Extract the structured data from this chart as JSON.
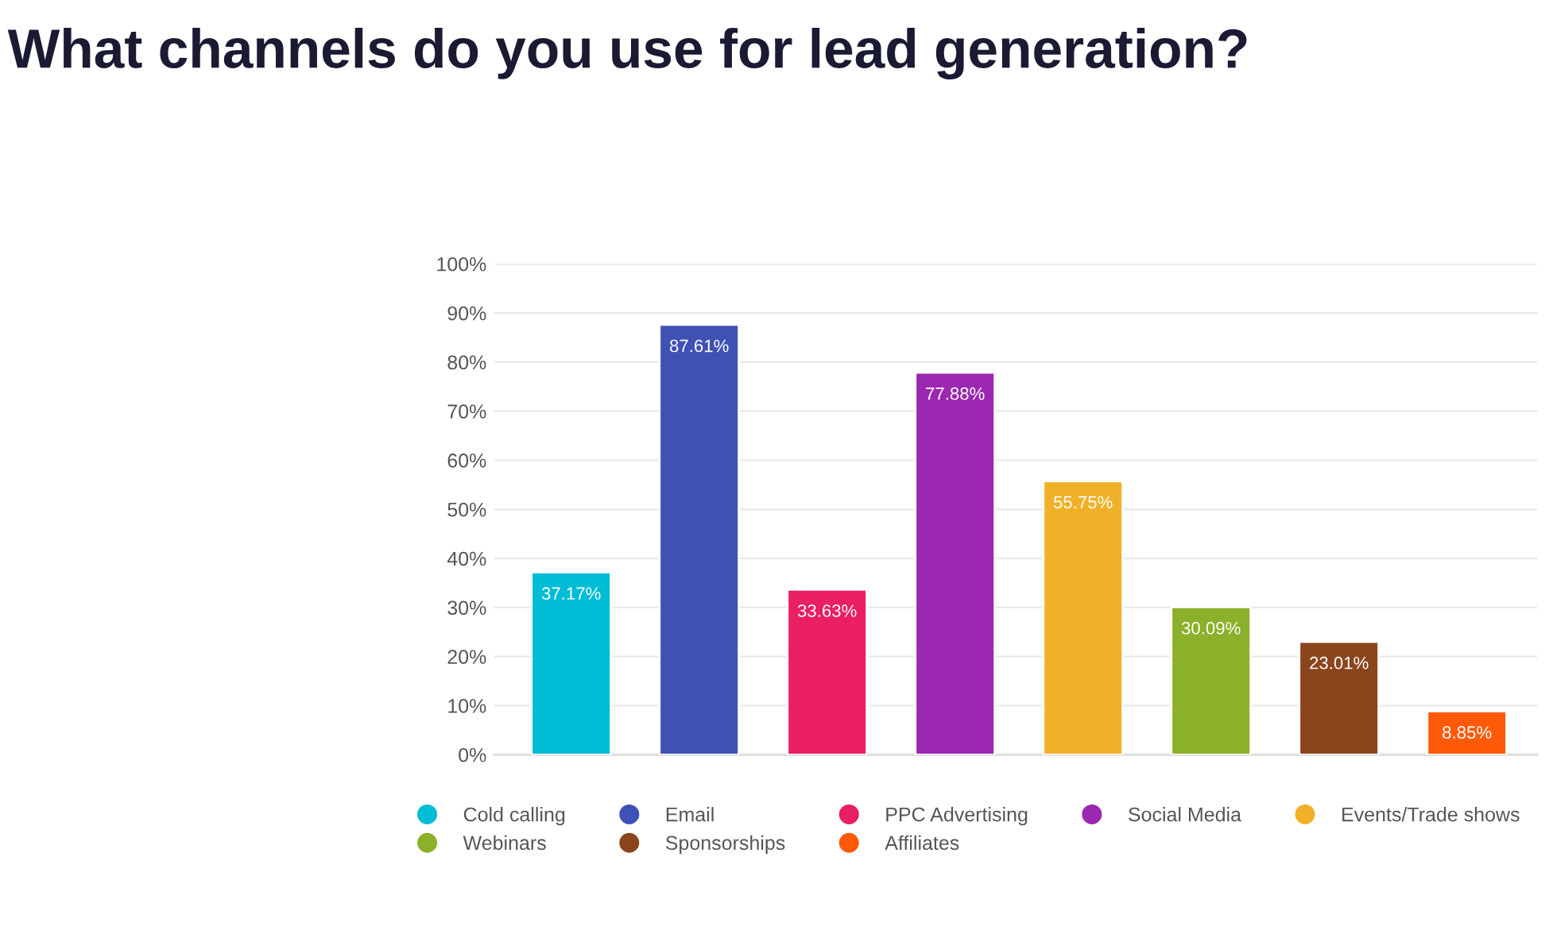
{
  "chart_data": {
    "type": "bar",
    "title": "What channels do you use for lead generation?",
    "categories": [
      null,
      null,
      null,
      null,
      null,
      null,
      null,
      null
    ],
    "series": [
      {
        "name": "Cold calling",
        "color": "#00bcd4",
        "values": [
          37.17,
          null,
          null,
          null,
          null,
          null,
          null,
          null
        ],
        "value_labels": [
          "37.17%",
          null,
          null,
          null,
          null,
          null,
          null,
          null
        ]
      },
      {
        "name": "Email",
        "color": "#3f51b5",
        "values": [
          null,
          87.61,
          null,
          null,
          null,
          null,
          null,
          null
        ],
        "value_labels": [
          null,
          "87.61%",
          null,
          null,
          null,
          null,
          null,
          null
        ]
      },
      {
        "name": "PPC Advertising",
        "color": "#e91e63",
        "values": [
          null,
          null,
          33.63,
          null,
          null,
          null,
          null,
          null
        ],
        "value_labels": [
          null,
          null,
          "33.63%",
          null,
          null,
          null,
          null,
          null
        ]
      },
      {
        "name": "Social Media",
        "color": "#9c27b0",
        "values": [
          null,
          null,
          null,
          77.88,
          null,
          null,
          null,
          null
        ],
        "value_labels": [
          null,
          null,
          null,
          "77.88%",
          null,
          null,
          null,
          null
        ]
      },
      {
        "name": "Events/Trade shows",
        "color": "#f0b128",
        "values": [
          null,
          null,
          null,
          null,
          55.75,
          null,
          null,
          null
        ],
        "value_labels": [
          null,
          null,
          null,
          null,
          "55.75%",
          null,
          null,
          null
        ]
      },
      {
        "name": "Webinars",
        "color": "#8bb02a",
        "values": [
          null,
          null,
          null,
          null,
          null,
          30.09,
          null,
          null
        ],
        "value_labels": [
          null,
          null,
          null,
          null,
          null,
          "30.09%",
          null,
          null
        ]
      },
      {
        "name": "Sponsorships",
        "color": "#8b451c",
        "values": [
          null,
          null,
          null,
          null,
          null,
          null,
          23.01,
          null
        ],
        "value_labels": [
          null,
          null,
          null,
          null,
          null,
          null,
          "23.01%",
          null
        ]
      },
      {
        "name": "Affiliates",
        "color": "#ff5a0a",
        "values": [
          null,
          null,
          null,
          null,
          null,
          null,
          null,
          8.85
        ],
        "value_labels": [
          null,
          null,
          null,
          null,
          null,
          null,
          null,
          "8.85%"
        ]
      }
    ],
    "ylim": [
      0,
      100
    ],
    "yticks": [
      {
        "value": 0,
        "label": "0%"
      },
      {
        "value": 10,
        "label": "10%"
      },
      {
        "value": 20,
        "label": "20%"
      },
      {
        "value": 30,
        "label": "30%"
      },
      {
        "value": 40,
        "label": "40%"
      },
      {
        "value": 50,
        "label": "50%"
      },
      {
        "value": 60,
        "label": "60%"
      },
      {
        "value": 70,
        "label": "70%"
      },
      {
        "value": 80,
        "label": "80%"
      },
      {
        "value": 90,
        "label": "90%"
      },
      {
        "value": 100,
        "label": "100%"
      }
    ],
    "grid": "y",
    "legend": "bottom",
    "tick_labels": "y"
  }
}
